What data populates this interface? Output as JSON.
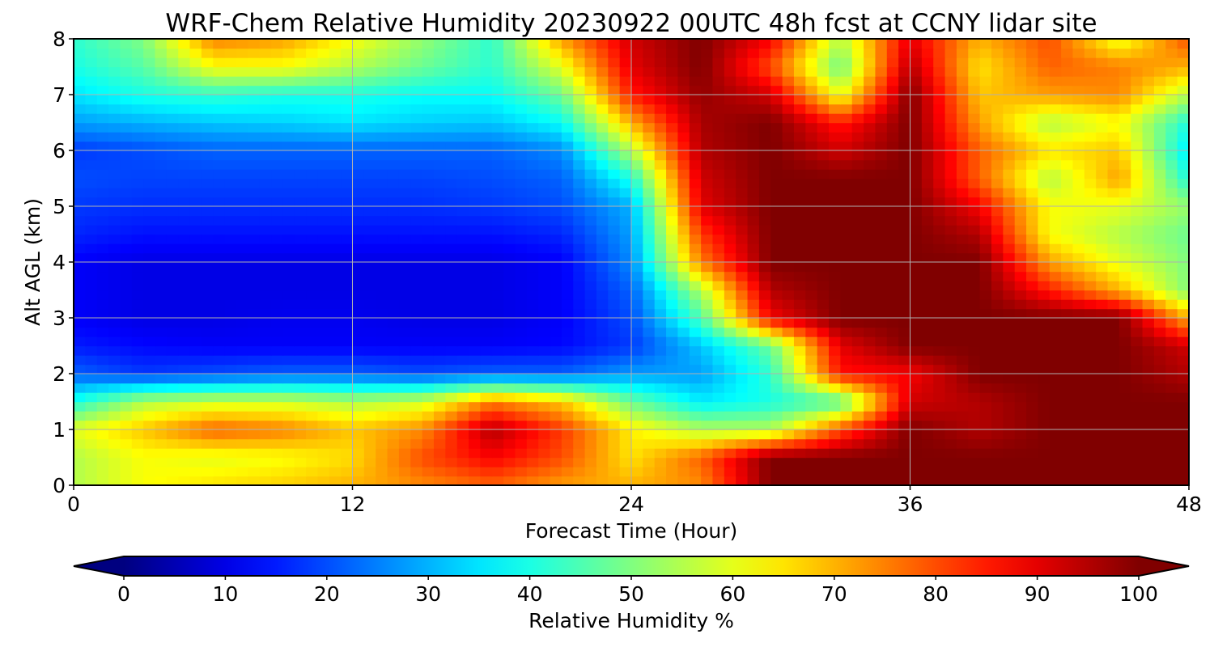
{
  "chart_data": {
    "type": "heatmap",
    "title": "WRF-Chem Relative Humidity 20230922 00UTC 48h fcst at CCNY lidar site",
    "xlabel": "Forecast Time (Hour)",
    "ylabel": "Alt AGL (km)",
    "xlim": [
      0,
      48
    ],
    "ylim": [
      0,
      8
    ],
    "x_ticks": [
      "0",
      "12",
      "24",
      "36",
      "48"
    ],
    "y_ticks": [
      "0",
      "1",
      "2",
      "3",
      "4",
      "5",
      "6",
      "7",
      "8"
    ],
    "grid": true,
    "colormap": "jet",
    "colorbar": {
      "label": "Relative Humidity %",
      "orientation": "horizontal",
      "range": [
        0,
        100
      ],
      "extend": "both",
      "ticks": [
        "0",
        "10",
        "20",
        "30",
        "40",
        "50",
        "60",
        "70",
        "80",
        "90",
        "100"
      ]
    },
    "x": [
      0,
      3,
      6,
      9,
      12,
      15,
      18,
      21,
      24,
      27,
      30,
      33,
      36,
      39,
      42,
      45,
      48
    ],
    "y": [
      0,
      0.5,
      1,
      1.5,
      2,
      2.5,
      3,
      3.5,
      4,
      4.5,
      5,
      5.5,
      6,
      6.5,
      7,
      7.5,
      8
    ],
    "z": [
      [
        55,
        62,
        65,
        67,
        70,
        74,
        78,
        72,
        70,
        74,
        100,
        100,
        100,
        100,
        100,
        100,
        100
      ],
      [
        55,
        62,
        60,
        62,
        66,
        80,
        88,
        80,
        65,
        78,
        100,
        100,
        100,
        100,
        100,
        100,
        100
      ],
      [
        60,
        68,
        78,
        75,
        68,
        74,
        95,
        82,
        64,
        55,
        55,
        80,
        100,
        95,
        100,
        100,
        100
      ],
      [
        40,
        55,
        58,
        58,
        55,
        58,
        75,
        68,
        48,
        36,
        40,
        45,
        92,
        95,
        100,
        100,
        100
      ],
      [
        22,
        18,
        20,
        22,
        22,
        20,
        22,
        22,
        28,
        28,
        42,
        86,
        88,
        100,
        100,
        100,
        95
      ],
      [
        15,
        13,
        12,
        12,
        12,
        12,
        12,
        13,
        18,
        32,
        48,
        90,
        100,
        100,
        100,
        100,
        92
      ],
      [
        12,
        10,
        10,
        11,
        11,
        10,
        10,
        12,
        20,
        45,
        88,
        100,
        100,
        100,
        100,
        100,
        70
      ],
      [
        12,
        10,
        10,
        10,
        10,
        10,
        10,
        12,
        22,
        55,
        95,
        100,
        100,
        100,
        85,
        70,
        50
      ],
      [
        12,
        10,
        10,
        10,
        10,
        10,
        10,
        12,
        26,
        75,
        100,
        100,
        100,
        100,
        72,
        60,
        50
      ],
      [
        16,
        14,
        14,
        14,
        14,
        14,
        14,
        16,
        28,
        82,
        100,
        100,
        100,
        95,
        62,
        55,
        48
      ],
      [
        18,
        17,
        17,
        17,
        17,
        17,
        18,
        20,
        30,
        90,
        100,
        100,
        100,
        88,
        62,
        60,
        52
      ],
      [
        20,
        19,
        19,
        19,
        19,
        19,
        20,
        22,
        40,
        92,
        100,
        100,
        100,
        78,
        55,
        72,
        40
      ],
      [
        18,
        20,
        22,
        22,
        22,
        22,
        22,
        26,
        55,
        95,
        100,
        92,
        100,
        78,
        65,
        68,
        35
      ],
      [
        28,
        30,
        32,
        33,
        35,
        33,
        32,
        38,
        70,
        96,
        100,
        85,
        100,
        72,
        55,
        62,
        40
      ],
      [
        35,
        40,
        42,
        40,
        40,
        38,
        38,
        48,
        85,
        98,
        92,
        60,
        100,
        68,
        72,
        74,
        55
      ],
      [
        40,
        46,
        62,
        62,
        55,
        48,
        42,
        60,
        90,
        100,
        80,
        48,
        95,
        65,
        78,
        75,
        70
      ],
      [
        42,
        50,
        75,
        72,
        62,
        52,
        42,
        72,
        92,
        100,
        88,
        55,
        90,
        70,
        80,
        60,
        80
      ]
    ]
  }
}
